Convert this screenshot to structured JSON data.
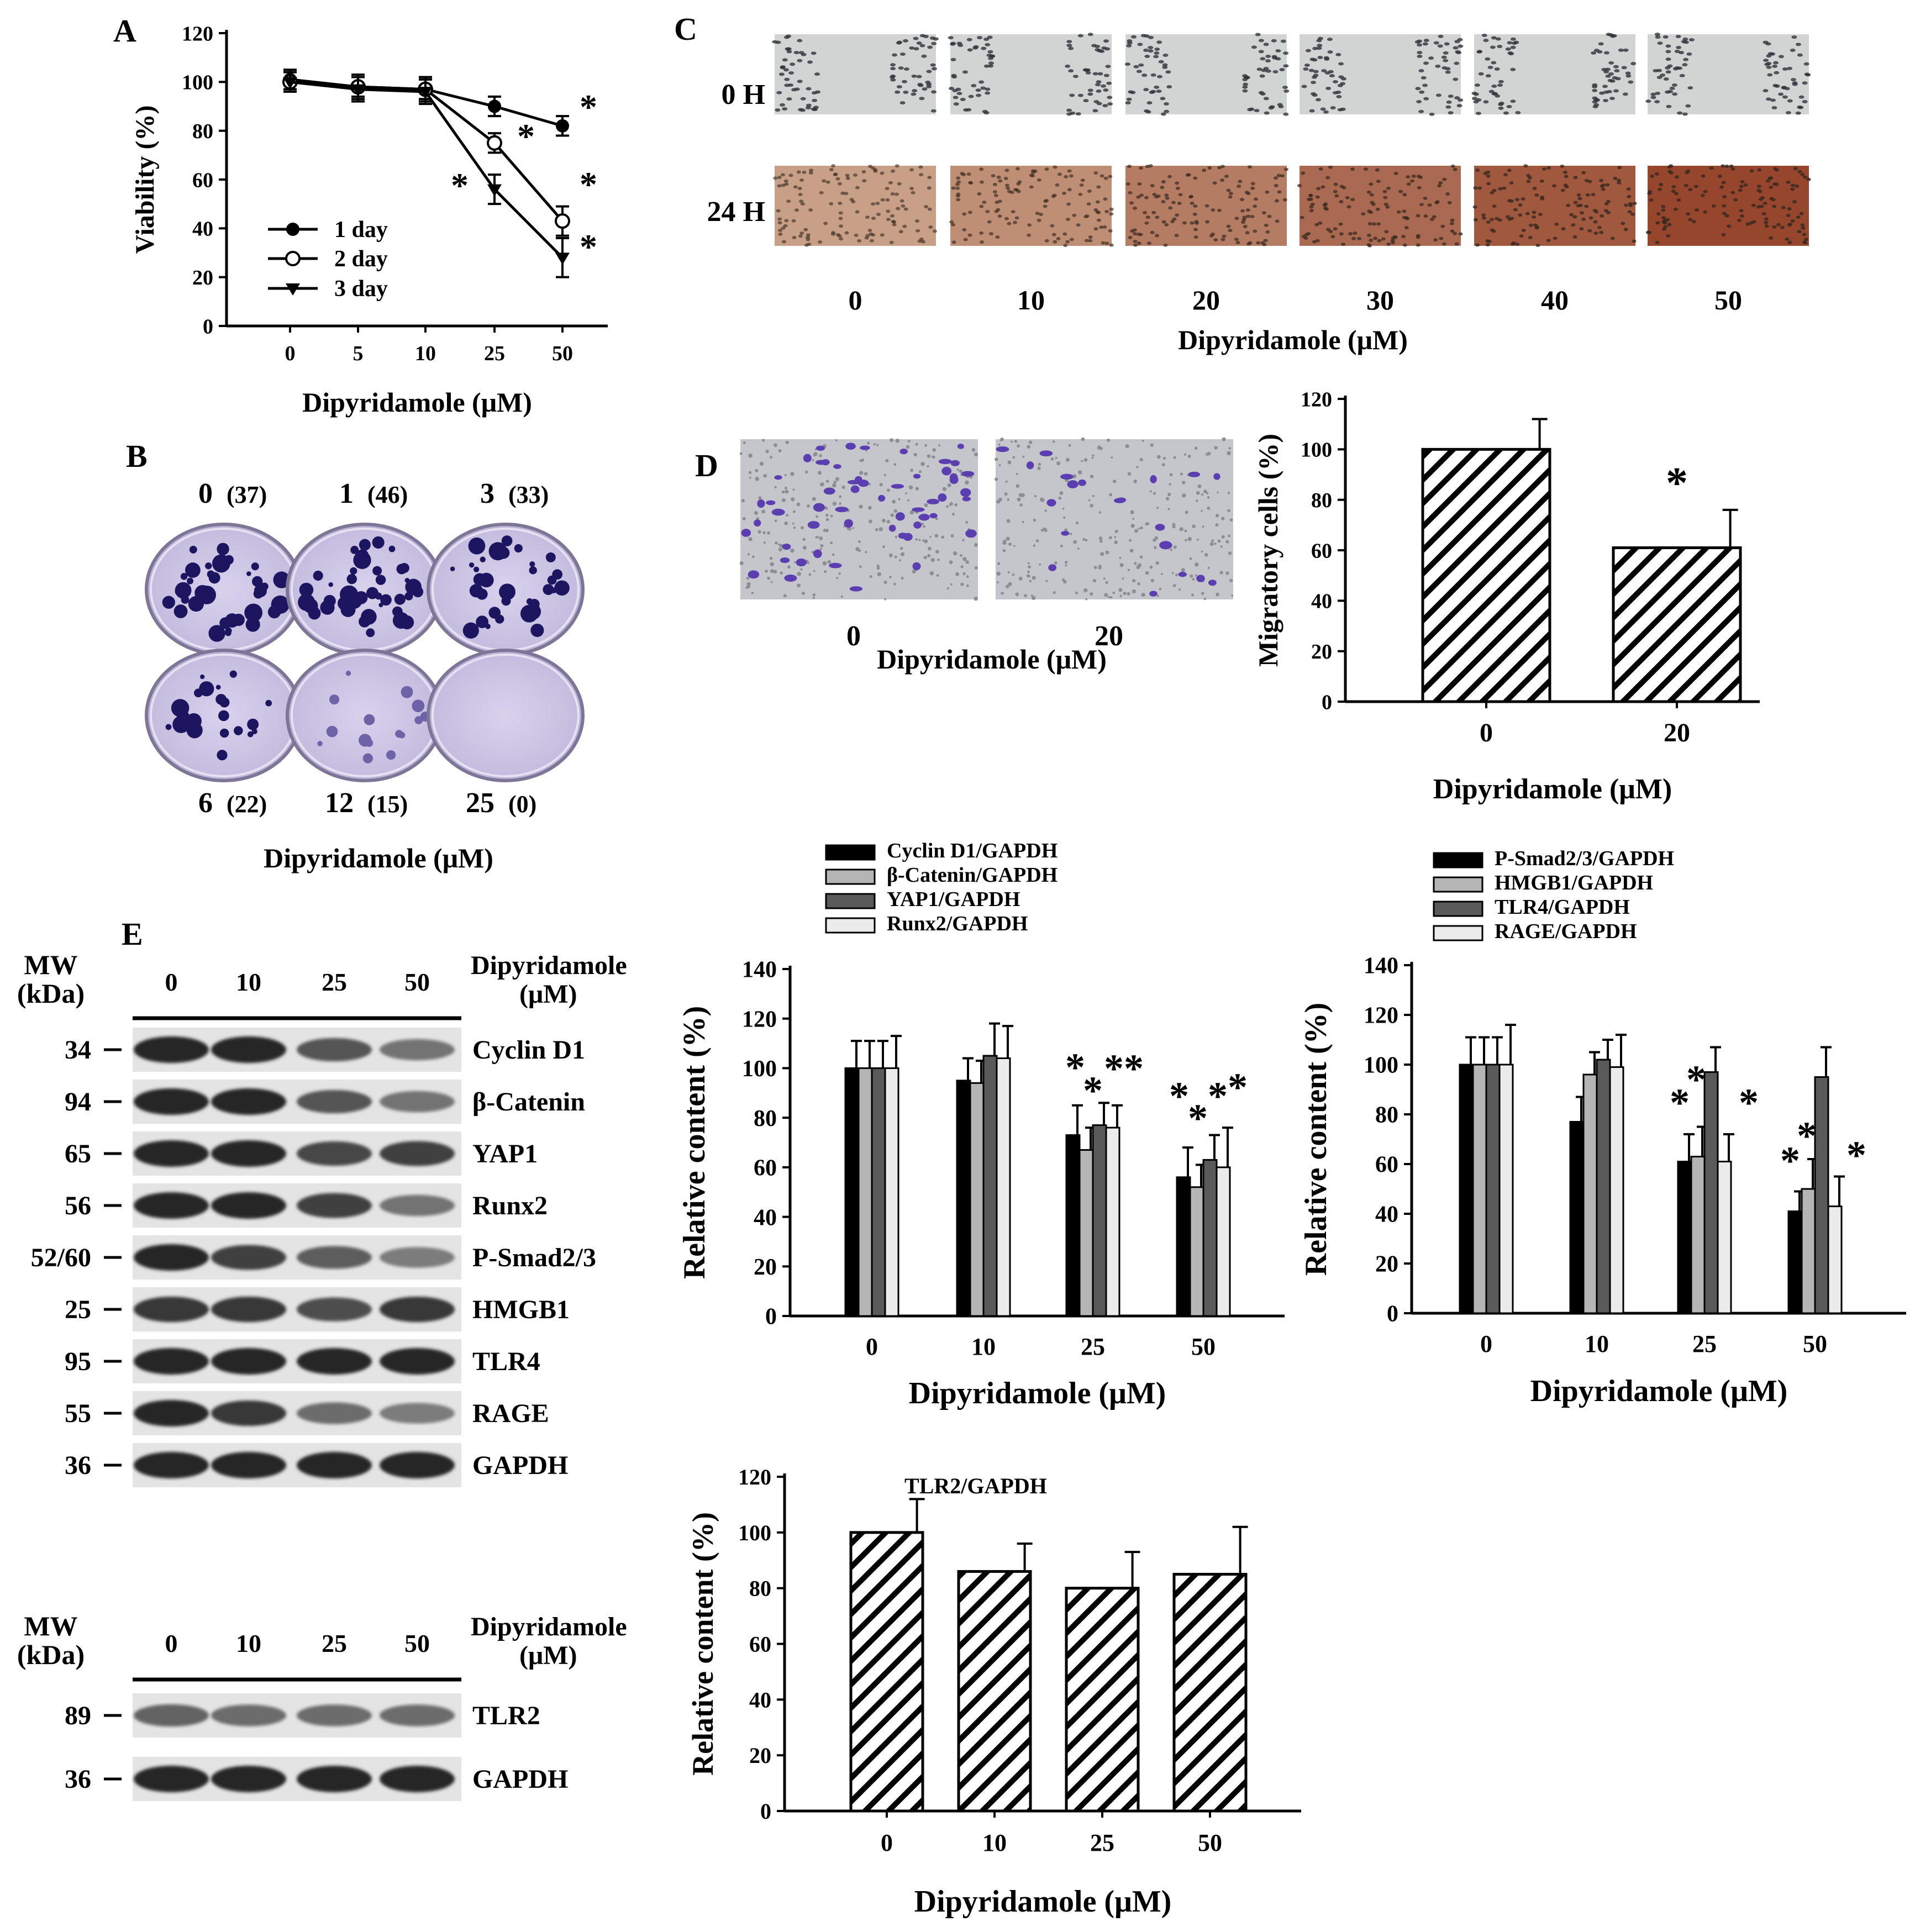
{
  "panels": {
    "A": "A",
    "B": "B",
    "C": "C",
    "D": "D",
    "E": "E"
  },
  "x_axis_label": "Dipyridamole (μM)",
  "chart_data": [
    {
      "id": "A",
      "type": "line",
      "ylabel": "Viability (%)",
      "xlabel": "Dipyridamole (μM)",
      "categories": [
        "0",
        "5",
        "10",
        "25",
        "50"
      ],
      "ylim": [
        0,
        120
      ],
      "yticks": [
        0,
        20,
        40,
        60,
        80,
        100,
        120
      ],
      "series": [
        {
          "name": "1 day",
          "values": [
            101,
            98,
            97,
            90,
            82
          ],
          "errors": [
            4,
            4,
            4,
            4,
            4
          ],
          "marker": "filled-circle"
        },
        {
          "name": "2 day",
          "values": [
            100,
            98,
            97,
            75,
            43
          ],
          "errors": [
            4,
            5,
            5,
            4,
            6
          ],
          "marker": "open-circle"
        },
        {
          "name": "3 day",
          "values": [
            100,
            97,
            96,
            56,
            28
          ],
          "errors": [
            4,
            5,
            5,
            6,
            8
          ],
          "marker": "filled-triangle"
        }
      ],
      "significance": [
        "*",
        "*",
        "*",
        "*",
        "*"
      ]
    },
    {
      "id": "D",
      "type": "bar",
      "ylabel": "Migratory cells (%)",
      "xlabel": "Dipyridamole (μM)",
      "categories": [
        "0",
        "20"
      ],
      "values": [
        100,
        61
      ],
      "errors": [
        12,
        15
      ],
      "ylim": [
        0,
        120
      ],
      "yticks": [
        0,
        20,
        40,
        60,
        80,
        100,
        120
      ],
      "significance": [
        "",
        "*"
      ]
    },
    {
      "id": "E1",
      "type": "bar",
      "ylabel": "Relative content (%)",
      "xlabel": "Dipyridamole (μM)",
      "categories": [
        "0",
        "10",
        "25",
        "50"
      ],
      "ylim": [
        0,
        140
      ],
      "yticks": [
        0,
        20,
        40,
        60,
        80,
        100,
        120,
        140
      ],
      "series": [
        {
          "name": "Cyclin D1/GAPDH",
          "values": [
            100,
            95,
            73,
            56
          ],
          "errors": [
            11,
            9,
            12,
            12
          ],
          "fill": "#000000"
        },
        {
          "name": "β-Catenin/GAPDH",
          "values": [
            100,
            94,
            67,
            52
          ],
          "errors": [
            11,
            9,
            9,
            9
          ],
          "fill": "#b5b5b5"
        },
        {
          "name": "YAP1/GAPDH",
          "values": [
            100,
            105,
            77,
            63
          ],
          "errors": [
            11,
            13,
            9,
            10
          ],
          "fill": "#5a5a5a"
        },
        {
          "name": "Runx2/GAPDH",
          "values": [
            100,
            104,
            76,
            60
          ],
          "errors": [
            13,
            13,
            9,
            16
          ],
          "fill": "#ebebeb"
        }
      ],
      "significance": [
        "",
        "",
        "* * * *",
        "* * * *"
      ]
    },
    {
      "id": "E2",
      "type": "bar",
      "ylabel": "Relative content (%)",
      "xlabel": "Dipyridamole (μM)",
      "categories": [
        "0",
        "10",
        "25",
        "50"
      ],
      "ylim": [
        0,
        140
      ],
      "yticks": [
        0,
        20,
        40,
        60,
        80,
        100,
        120,
        140
      ],
      "series": [
        {
          "name": "P-Smad2/3/GAPDH",
          "values": [
            100,
            77,
            61,
            41
          ],
          "errors": [
            11,
            10,
            11,
            8
          ],
          "fill": "#000000"
        },
        {
          "name": "HMGB1/GAPDH",
          "values": [
            100,
            96,
            63,
            50
          ],
          "errors": [
            11,
            9,
            12,
            12
          ],
          "fill": "#b5b5b5"
        },
        {
          "name": "TLR4/GAPDH",
          "values": [
            100,
            102,
            97,
            95
          ],
          "errors": [
            11,
            8,
            10,
            12
          ],
          "fill": "#5a5a5a"
        },
        {
          "name": "RAGE/GAPDH",
          "values": [
            100,
            99,
            61,
            43
          ],
          "errors": [
            16,
            13,
            11,
            12
          ],
          "fill": "#ebebeb"
        }
      ],
      "significance": [
        "",
        "",
        "* * *",
        "* * *"
      ]
    },
    {
      "id": "E3",
      "type": "bar",
      "title": "TLR2/GAPDH",
      "ylabel": "Relative content (%)",
      "xlabel": "Dipyridamole (μM)",
      "categories": [
        "0",
        "10",
        "25",
        "50"
      ],
      "values": [
        100,
        86,
        80,
        85
      ],
      "errors": [
        12,
        10,
        13,
        17
      ],
      "ylim": [
        0,
        120
      ],
      "yticks": [
        0,
        20,
        40,
        60,
        80,
        100,
        120
      ]
    }
  ],
  "colony": {
    "top": [
      {
        "dose": "0",
        "count": "(37)"
      },
      {
        "dose": "1",
        "count": "(46)"
      },
      {
        "dose": "3",
        "count": "(33)"
      }
    ],
    "bottom": [
      {
        "dose": "6",
        "count": "(22)"
      },
      {
        "dose": "12",
        "count": "(15)"
      },
      {
        "dose": "25",
        "count": "(0)"
      }
    ],
    "colors": {
      "plate": "#c9c2e2",
      "colony": "#1e1560"
    }
  },
  "wound": {
    "rows": [
      "0 H",
      "24 H"
    ],
    "doses": [
      "0",
      "10",
      "20",
      "30",
      "40",
      "50"
    ],
    "colors": {
      "h0": "#c8c8c8",
      "h24": "#c0866a"
    }
  },
  "transwell": {
    "doses": [
      "0",
      "20"
    ],
    "colors": {
      "bg": "#bcbcc2",
      "cell": "#5b3fb0"
    }
  },
  "blot1": {
    "mw_header": [
      "MW",
      "(kDa)"
    ],
    "treatment_header": [
      "Dipyridamole",
      "(μM)"
    ],
    "lanes": [
      "0",
      "10",
      "25",
      "50"
    ],
    "rows": [
      {
        "mw": "34",
        "label": "Cyclin D1",
        "intensity": [
          1.0,
          1.0,
          0.7,
          0.5
        ]
      },
      {
        "mw": "94",
        "label": "β-Catenin",
        "intensity": [
          1.0,
          1.0,
          0.7,
          0.5
        ]
      },
      {
        "mw": "65",
        "label": "YAP1",
        "intensity": [
          1.0,
          1.0,
          0.8,
          0.85
        ]
      },
      {
        "mw": "56",
        "label": "Runx2",
        "intensity": [
          1.0,
          1.0,
          0.85,
          0.5
        ]
      },
      {
        "mw": "52/60",
        "label": "P-Smad2/3",
        "intensity": [
          1.0,
          0.85,
          0.65,
          0.45
        ]
      },
      {
        "mw": "25",
        "label": "HMGB1",
        "intensity": [
          0.9,
          0.9,
          0.75,
          0.9
        ]
      },
      {
        "mw": "95",
        "label": "TLR4",
        "intensity": [
          1.0,
          1.0,
          1.0,
          1.0
        ]
      },
      {
        "mw": "55",
        "label": "RAGE",
        "intensity": [
          1.0,
          0.9,
          0.55,
          0.45
        ]
      },
      {
        "mw": "36",
        "label": "GAPDH",
        "intensity": [
          1.0,
          1.0,
          1.0,
          1.0
        ]
      }
    ]
  },
  "blot2": {
    "mw_header": [
      "MW",
      "(kDa)"
    ],
    "treatment_header": [
      "Dipyridamole",
      "(μM)"
    ],
    "lanes": [
      "0",
      "10",
      "25",
      "50"
    ],
    "rows": [
      {
        "mw": "89",
        "label": "TLR2",
        "intensity": [
          0.6,
          0.55,
          0.55,
          0.55
        ]
      },
      {
        "mw": "36",
        "label": "GAPDH",
        "intensity": [
          1.0,
          1.0,
          1.0,
          1.0
        ]
      }
    ]
  }
}
